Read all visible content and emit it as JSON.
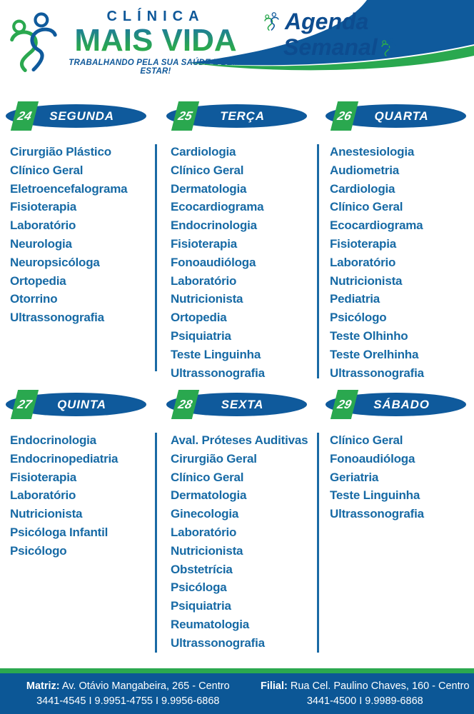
{
  "header": {
    "clinic_top": "CLÍNICA",
    "clinic_name": "MAIS VIDA",
    "tagline": "TRABALHANDO PELA SUA SAÚDE E BEM-ESTAR!",
    "title_line1": "Agenda",
    "title_line2": "Semanal"
  },
  "icons": {
    "logo_mark": "two-people-heart",
    "title_decorations": "two-people-heart-mini"
  },
  "days": [
    {
      "number": "24",
      "name": "SEGUNDA",
      "items": [
        "Cirurgião Plástico",
        "Clínico Geral",
        "Eletroencefalograma",
        "Fisioterapia",
        "Laboratório",
        "Neurologia",
        "Neuropsicóloga",
        "Ortopedia",
        "Otorrino",
        "Ultrassonografia"
      ]
    },
    {
      "number": "25",
      "name": "TERÇA",
      "items": [
        "Cardiologia",
        "Clínico Geral",
        "Dermatologia",
        "Ecocardiograma",
        "Endocrinologia",
        "Fisioterapia",
        "Fonoaudióloga",
        "Laboratório",
        "Nutricionista",
        "Ortopedia",
        "Psiquiatria",
        "Teste Linguinha",
        "Ultrassonografia"
      ]
    },
    {
      "number": "26",
      "name": "QUARTA",
      "items": [
        "Anestesiologia",
        "Audiometria",
        "Cardiologia",
        "Clínico Geral",
        "Ecocardiograma",
        "Fisioterapia",
        "Laboratório",
        "Nutricionista",
        "Pediatria",
        "Psicólogo",
        "Teste Olhinho",
        "Teste Orelhinha",
        "Ultrassonografia"
      ]
    },
    {
      "number": "27",
      "name": "QUINTA",
      "items": [
        "Endocrinologia",
        "Endocrinopediatria",
        "Fisioterapia",
        "Laboratório",
        "Nutricionista",
        "Psicóloga Infantil",
        "Psicólogo"
      ]
    },
    {
      "number": "28",
      "name": "SEXTA",
      "items": [
        "Aval. Próteses Auditivas",
        "Cirurgião Geral",
        "Clínico Geral",
        "Dermatologia",
        "Ginecologia",
        "Laboratório",
        "Nutricionista",
        "Obstetrícia",
        "Psicóloga",
        "Psiquiatria",
        "Reumatologia",
        "Ultrassonografia"
      ]
    },
    {
      "number": "29",
      "name": "SÁBADO",
      "items": [
        "Clínico Geral",
        "Fonoaudióloga",
        "Geriatria",
        "Teste Linguinha",
        "Ultrassonografia"
      ]
    }
  ],
  "footer": {
    "matriz_label": "Matriz:",
    "matriz_address": "Av. Otávio Mangabeira, 265 - Centro",
    "matriz_phones": "3441-4545 I 9.9951-4755 I 9.9956-6868",
    "filial_label": "Filial:",
    "filial_address": "Rua Cel. Paulino Chaves, 160 - Centro",
    "filial_phones": "3441-4500 I 9.9989-6868"
  },
  "colors": {
    "brand_blue": "#0F5A9C",
    "brand_green": "#2AA84F",
    "list_text_blue": "#176AA5",
    "title_navy": "#0D4C8F",
    "footer_blue": "#0C5796"
  }
}
